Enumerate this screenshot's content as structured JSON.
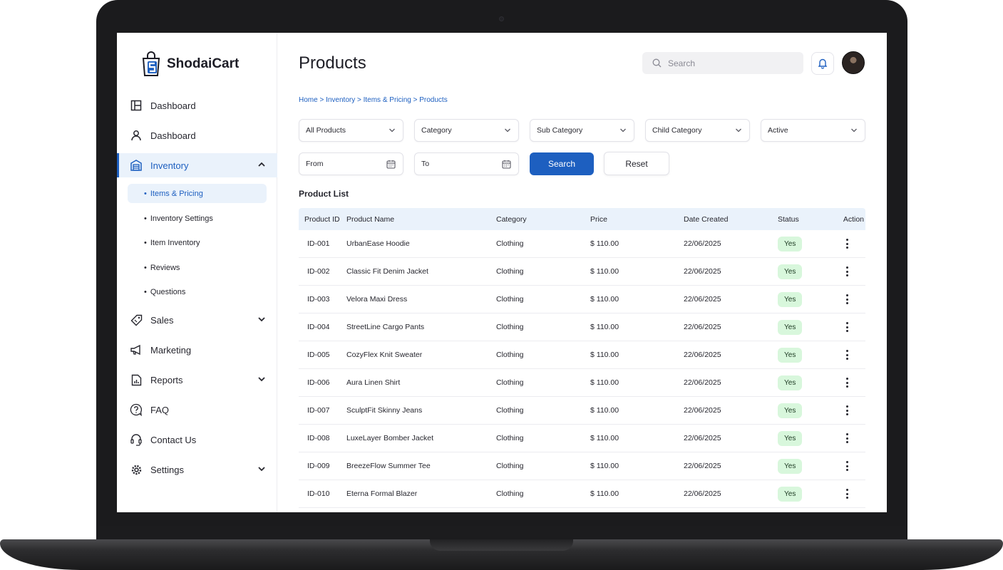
{
  "app": {
    "name": "ShodaiCart"
  },
  "colors": {
    "accent": "#1d5fc0",
    "active_bg": "#eaf2fb",
    "badge_bg": "#d8f7dc",
    "text": "#26262e"
  },
  "sidebar": {
    "items": [
      {
        "label": "Dashboard",
        "icon": "layout-icon"
      },
      {
        "label": "Dashboard",
        "icon": "user-icon"
      },
      {
        "label": "Inventory",
        "icon": "warehouse-icon",
        "active": true,
        "expanded": true
      },
      {
        "label": "Sales",
        "icon": "tag-icon"
      },
      {
        "label": "Marketing",
        "icon": "megaphone-icon"
      },
      {
        "label": "Reports",
        "icon": "report-icon"
      },
      {
        "label": "FAQ",
        "icon": "question-icon"
      },
      {
        "label": "Contact Us",
        "icon": "headset-icon"
      },
      {
        "label": "Settings",
        "icon": "gear-icon"
      }
    ],
    "subitems": [
      {
        "label": "Items & Pricing",
        "active": true
      },
      {
        "label": "Inventory Settings"
      },
      {
        "label": "Item Inventory"
      },
      {
        "label": "Reviews"
      },
      {
        "label": "Questions"
      }
    ]
  },
  "header": {
    "title": "Products",
    "search_placeholder": "Search",
    "breadcrumb": "Home > Inventory > Items & Pricing > Products"
  },
  "filters": {
    "products": "All Products",
    "category": "Category",
    "sub_category": "Sub Category",
    "child_category": "Child Category",
    "status": "Active",
    "from": "From",
    "to": "To",
    "search_label": "Search",
    "reset_label": "Reset"
  },
  "table": {
    "title": "Product List",
    "columns": [
      "Product ID",
      "Product Name",
      "Category",
      "Price",
      "Date Created",
      "Status",
      "Action"
    ],
    "rows": [
      {
        "id": "ID-001",
        "name": "UrbanEase Hoodie",
        "category": "Clothing",
        "price": "$ 110.00",
        "date": "22/06/2025",
        "status": "Yes"
      },
      {
        "id": "ID-002",
        "name": "Classic Fit Denim Jacket",
        "category": "Clothing",
        "price": "$ 110.00",
        "date": "22/06/2025",
        "status": "Yes"
      },
      {
        "id": "ID-003",
        "name": "Velora Maxi Dress",
        "category": "Clothing",
        "price": "$ 110.00",
        "date": "22/06/2025",
        "status": "Yes"
      },
      {
        "id": "ID-004",
        "name": "StreetLine Cargo Pants",
        "category": "Clothing",
        "price": "$ 110.00",
        "date": "22/06/2025",
        "status": "Yes"
      },
      {
        "id": "ID-005",
        "name": "CozyFlex Knit Sweater",
        "category": "Clothing",
        "price": "$ 110.00",
        "date": "22/06/2025",
        "status": "Yes"
      },
      {
        "id": "ID-006",
        "name": "Aura Linen Shirt",
        "category": "Clothing",
        "price": "$ 110.00",
        "date": "22/06/2025",
        "status": "Yes"
      },
      {
        "id": "ID-007",
        "name": "SculptFit Skinny Jeans",
        "category": "Clothing",
        "price": "$ 110.00",
        "date": "22/06/2025",
        "status": "Yes"
      },
      {
        "id": "ID-008",
        "name": "LuxeLayer Bomber Jacket",
        "category": "Clothing",
        "price": "$ 110.00",
        "date": "22/06/2025",
        "status": "Yes"
      },
      {
        "id": "ID-009",
        "name": "BreezeFlow Summer Tee",
        "category": "Clothing",
        "price": "$ 110.00",
        "date": "22/06/2025",
        "status": "Yes"
      },
      {
        "id": "ID-010",
        "name": "Eterna Formal Blazer",
        "category": "Clothing",
        "price": "$ 110.00",
        "date": "22/06/2025",
        "status": "Yes"
      }
    ]
  }
}
